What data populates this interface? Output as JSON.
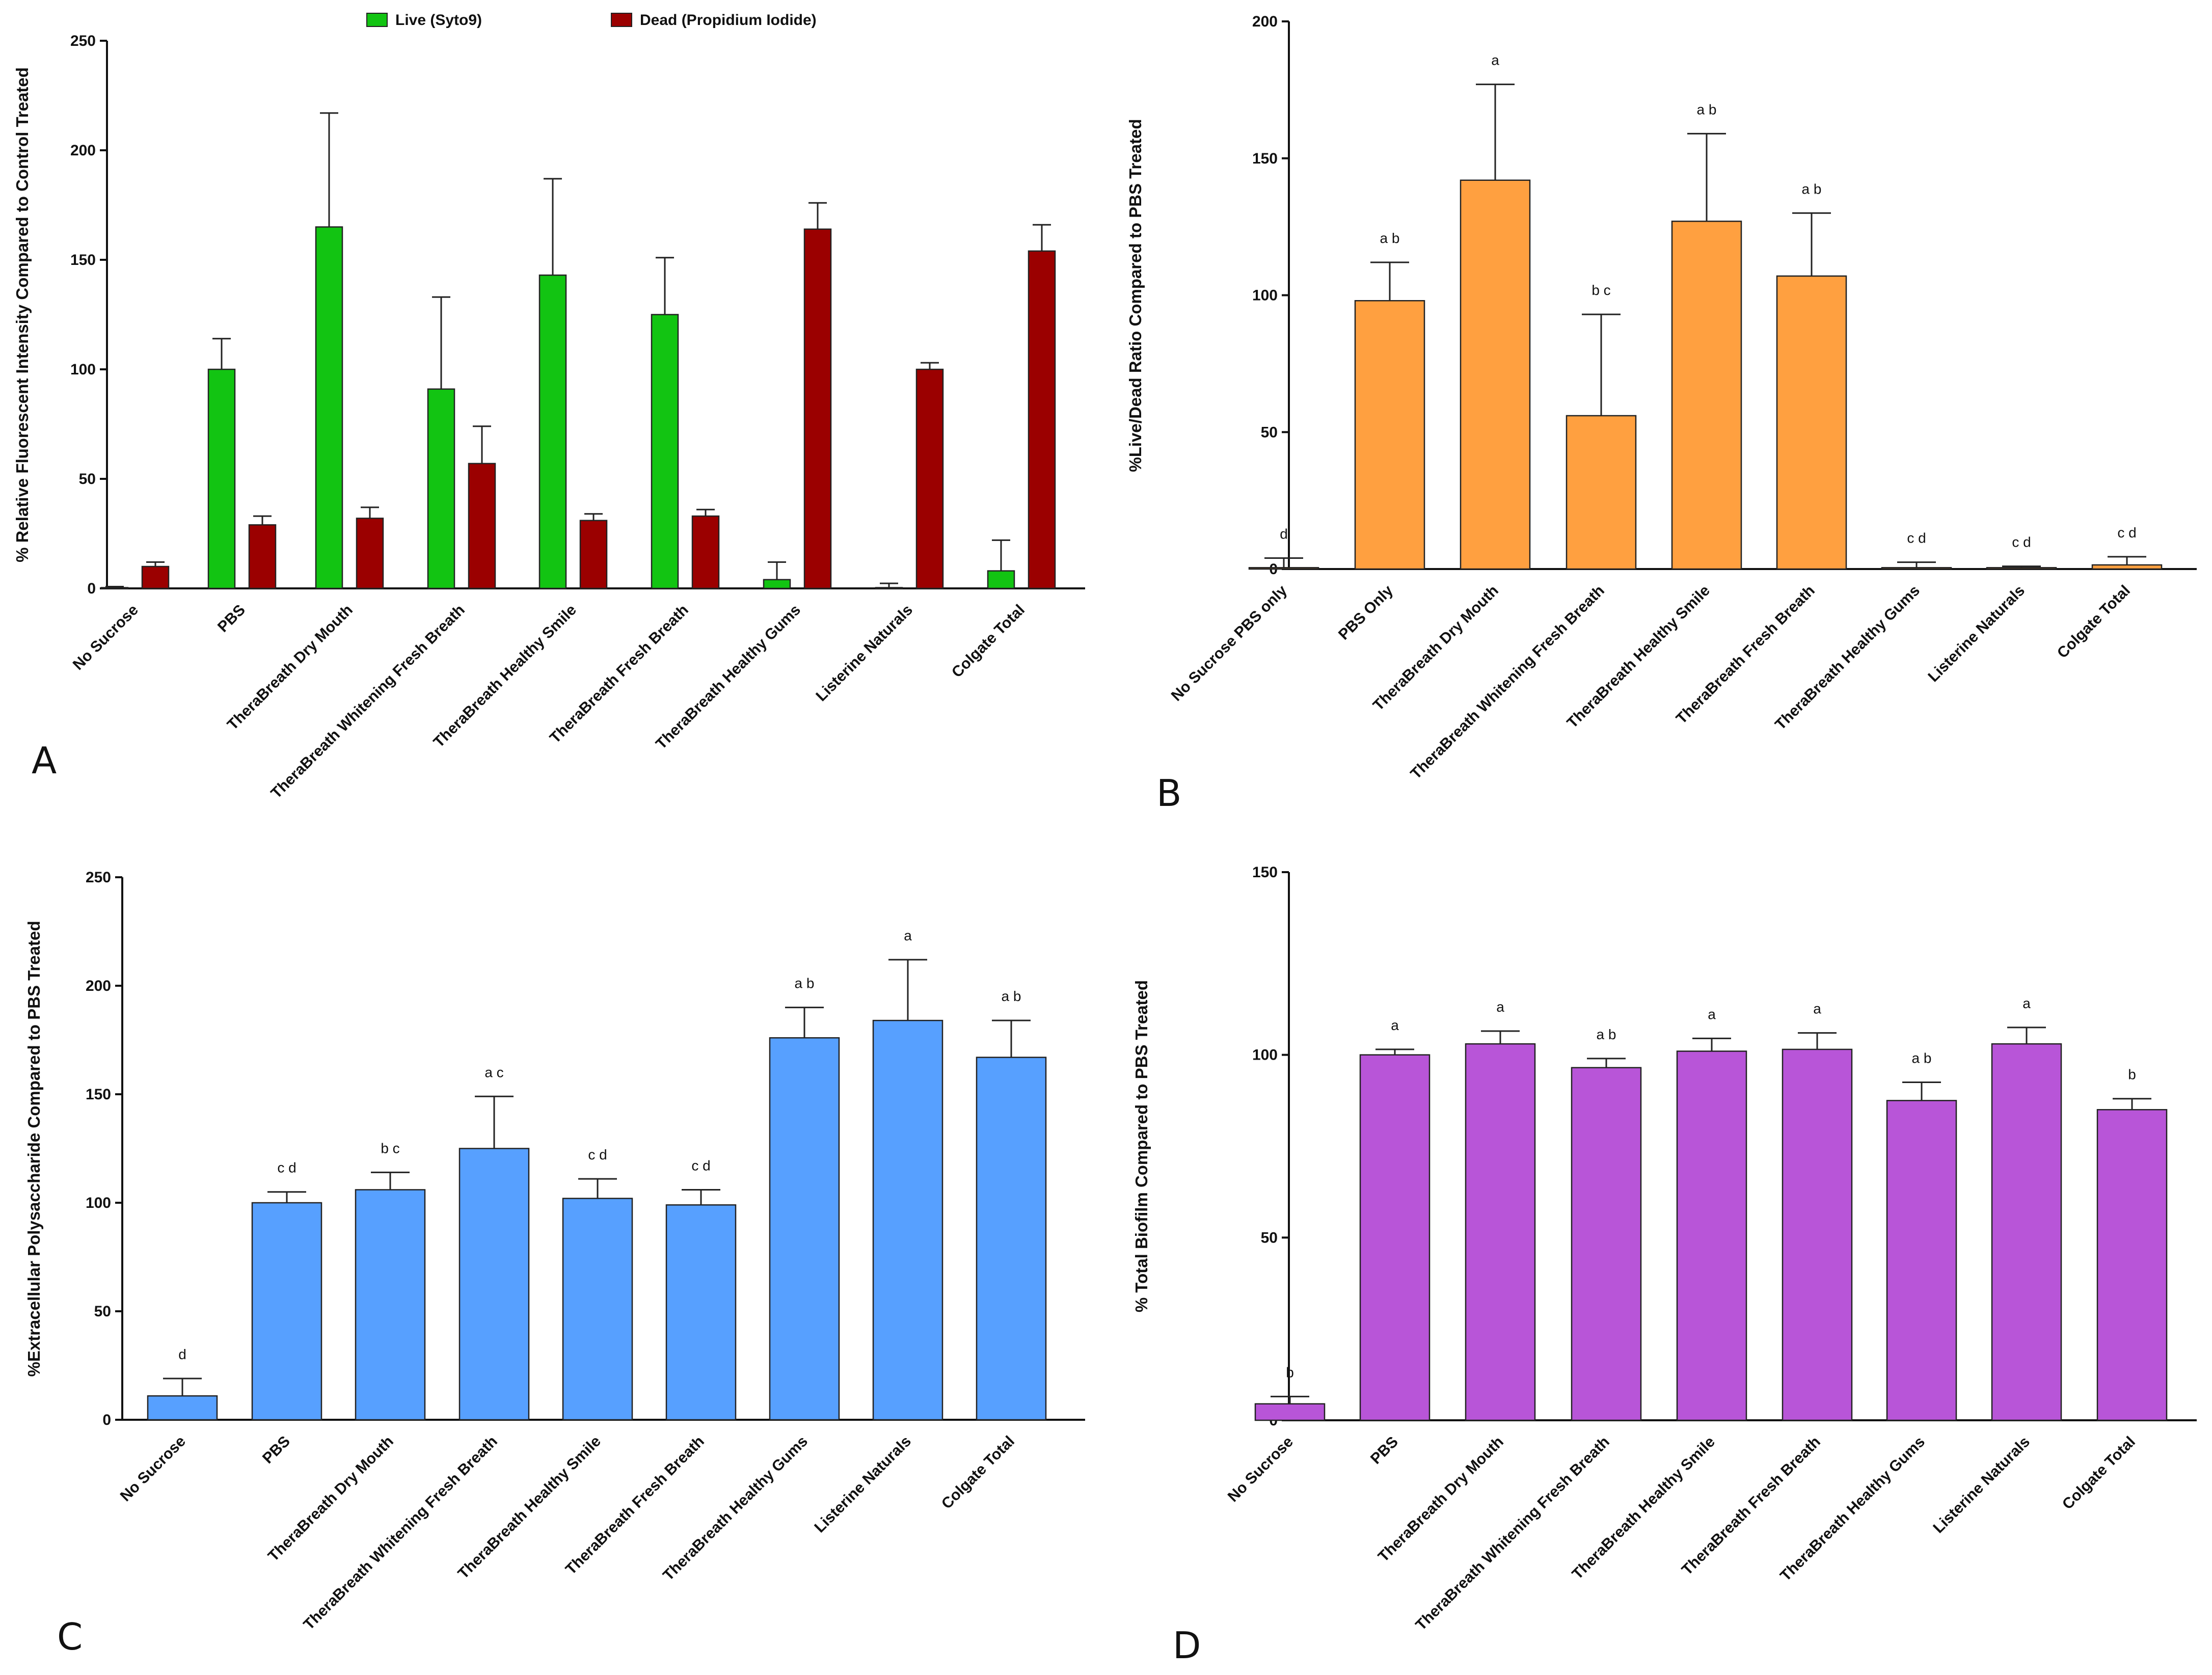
{
  "chart_data": [
    {
      "id": "A",
      "type": "bar",
      "panel_label": "A",
      "title": "",
      "ylabel": "% Relative Fluorescent  Intensity Compared to Control Treated",
      "xlabel": "",
      "ylim": [
        0,
        250
      ],
      "yticks": [
        0,
        50,
        100,
        150,
        200,
        250
      ],
      "categories": [
        "No Sucrose",
        "PBS",
        "TheraBreath Dry Mouth",
        "TheraBreath Whitening Fresh Breath",
        "TheraBreath Healthy Smile",
        "TheraBreath Fresh Breath",
        "TheraBreath Healthy Gums",
        "Listerine Naturals",
        "Colgate Total"
      ],
      "series": [
        {
          "name": "Live (Syto9)",
          "color": "#12c412",
          "values": [
            0.3,
            100,
            165,
            91,
            143,
            125,
            4,
            0.3,
            8
          ],
          "errors": [
            0.5,
            14,
            52,
            42,
            44,
            26,
            8,
            2,
            14
          ]
        },
        {
          "name": "Dead (Propidium Iodide)",
          "color": "#9b0000",
          "values": [
            10,
            29,
            32,
            57,
            31,
            33,
            164,
            100,
            154
          ],
          "errors": [
            2,
            4,
            5,
            17,
            3,
            3,
            12,
            3,
            12
          ]
        }
      ],
      "legend_position": "top"
    },
    {
      "id": "B",
      "type": "bar",
      "panel_label": "B",
      "title": "",
      "ylabel": "%Live/Dead  Ratio Compared to PBS Treated",
      "xlabel": "",
      "ylim": [
        0,
        200
      ],
      "yticks": [
        0,
        50,
        100,
        150,
        200
      ],
      "categories": [
        "No Sucrose PBS only",
        "PBS Only",
        "TheraBreath Dry Mouth",
        "TheraBreath Whitening Fresh Breath",
        "TheraBreath Healthy Smile",
        "TheraBreath Fresh Breath",
        "TheraBreath Healthy Gums",
        "Listerine Naturals",
        "Colgate Total"
      ],
      "series": [
        {
          "name": "Live/Dead",
          "color": "#ffa040",
          "values": [
            0.5,
            98,
            142,
            56,
            127,
            107,
            0.5,
            0.5,
            1.5
          ],
          "errors": [
            3.5,
            14,
            35,
            37,
            32,
            23,
            2,
            0.5,
            3
          ]
        }
      ],
      "significance": [
        "d",
        "a b",
        "a",
        "b c",
        "a b",
        "a b",
        "c d",
        "c d",
        "c d"
      ]
    },
    {
      "id": "C",
      "type": "bar",
      "panel_label": "C",
      "title": "",
      "ylabel": "%Extracellular Polysaccharide Compared to PBS Treated",
      "xlabel": "",
      "ylim": [
        0,
        250
      ],
      "yticks": [
        0,
        50,
        100,
        150,
        200,
        250
      ],
      "categories": [
        "No Sucrose",
        "PBS",
        "TheraBreath Dry Mouth",
        "TheraBreath Whitening Fresh Breath",
        "TheraBreath Healthy Smile",
        "TheraBreath Fresh Breath",
        "TheraBreath Healthy Gums",
        "Listerine Naturals",
        "Colgate Total"
      ],
      "series": [
        {
          "name": "EPS",
          "color": "#57a0ff",
          "values": [
            11,
            100,
            106,
            125,
            102,
            99,
            176,
            184,
            167
          ],
          "errors": [
            8,
            5,
            8,
            24,
            9,
            7,
            14,
            28,
            17
          ]
        }
      ],
      "significance": [
        "d",
        "c d",
        "b c",
        "a c",
        "c d",
        "c d",
        "a b",
        "a",
        "a b"
      ]
    },
    {
      "id": "D",
      "type": "bar",
      "panel_label": "D",
      "title": "",
      "ylabel": "% Total  Biofilm Compared to PBS Treated",
      "xlabel": "",
      "ylim": [
        0,
        150
      ],
      "yticks": [
        0,
        50,
        100,
        150
      ],
      "categories": [
        "No Sucrose",
        "PBS",
        "TheraBreath Dry Mouth",
        "TheraBreath Whitening Fresh Breath",
        "TheraBreath Healthy Smile",
        "TheraBreath Fresh Breath",
        "TheraBreath Healthy Gums",
        "Listerine Naturals",
        "Colgate Total"
      ],
      "series": [
        {
          "name": "Total Biofilm",
          "color": "#b855d8",
          "values": [
            4.5,
            100,
            103,
            96.5,
            101,
            101.5,
            87.5,
            103,
            85
          ],
          "errors": [
            2,
            1.5,
            3.5,
            2.5,
            3.5,
            4.5,
            5,
            4.5,
            3
          ]
        }
      ],
      "significance": [
        "b",
        "a",
        "a",
        "a b",
        "a",
        "a",
        "a b",
        "a",
        "b"
      ]
    }
  ]
}
